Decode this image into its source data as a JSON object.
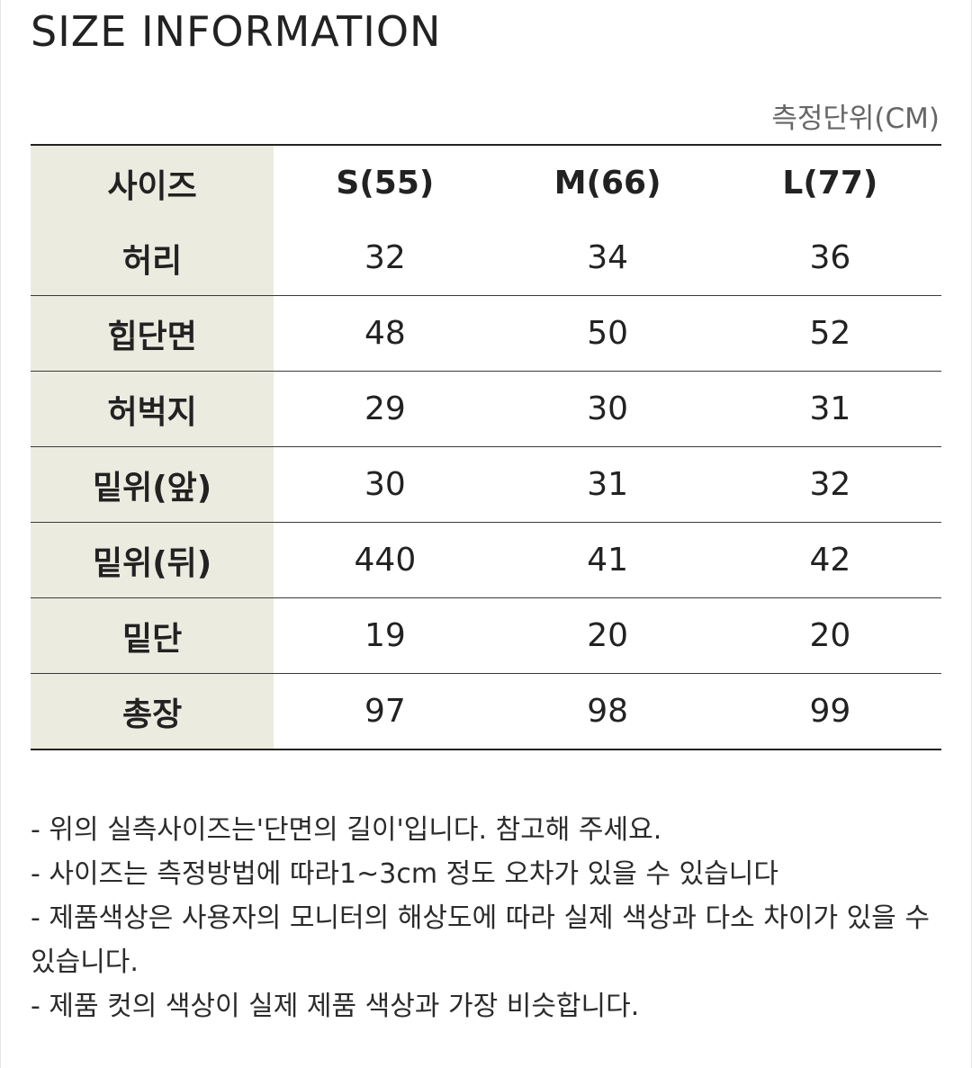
{
  "title": "SIZE INFORMATION",
  "unit_label": "측정단위(CM)",
  "table": {
    "header": {
      "label": "사이즈",
      "sizes": [
        "S(55)",
        "M(66)",
        "L(77)"
      ]
    },
    "rows": [
      {
        "label": "허리",
        "values": [
          "32",
          "34",
          "36"
        ]
      },
      {
        "label": "힙단면",
        "values": [
          "48",
          "50",
          "52"
        ]
      },
      {
        "label": "허벅지",
        "values": [
          "29",
          "30",
          "31"
        ]
      },
      {
        "label": "밑위(앞)",
        "values": [
          "30",
          "31",
          "32"
        ]
      },
      {
        "label": "밑위(뒤)",
        "values": [
          "440",
          "41",
          "42"
        ]
      },
      {
        "label": "밑단",
        "values": [
          "19",
          "20",
          "20"
        ]
      },
      {
        "label": "총장",
        "values": [
          "97",
          "98",
          "99"
        ]
      }
    ]
  },
  "notes": [
    "- 위의 실측사이즈는'단면의 길이'입니다. 참고해 주세요.",
    "- 사이즈는 측정방법에 따라1~3cm 정도 오차가 있을 수 있습니다",
    "- 제품색상은 사용자의 모니터의 해상도에 따라 실제 색상과 다소 차이가 있을 수 있습니다.",
    "- 제품 컷의 색상이 실제 제품 색상과 가장 비슷합니다."
  ],
  "colors": {
    "label_background": "#ecebe0",
    "text": "#222222",
    "unit_text": "#666666"
  }
}
